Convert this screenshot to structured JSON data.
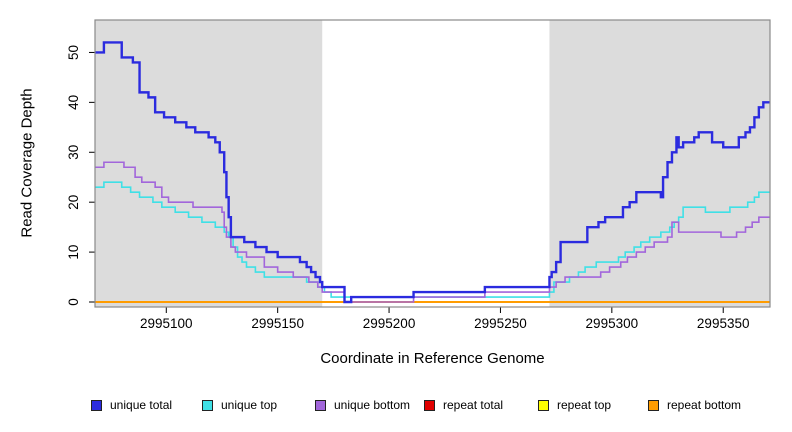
{
  "chart_data": {
    "type": "line",
    "subtype": "step",
    "title": "",
    "xlabel": "Coordinate in Reference Genome",
    "ylabel": "Read Coverage Depth",
    "xlim": [
      2995068,
      2995371
    ],
    "ylim": [
      -1,
      56.5
    ],
    "xticks": [
      2995100,
      2995150,
      2995200,
      2995250,
      2995300,
      2995350
    ],
    "yticks": [
      0,
      10,
      20,
      30,
      40,
      50
    ],
    "grid": "off",
    "legend_position": "bottom",
    "plot_bg": "#ffffff",
    "box_color": "#8a8a8a",
    "shaded_regions": [
      {
        "name": "left-repeat-region",
        "x0": 2995068,
        "x1": 2995170,
        "color": "#dcdcdc"
      },
      {
        "name": "right-repeat-region",
        "x0": 2995272,
        "x1": 2995371,
        "color": "#dcdcdc"
      }
    ],
    "draw_order": [
      "repeat total",
      "repeat top",
      "repeat bottom",
      "unique top",
      "unique bottom",
      "unique total"
    ],
    "series": [
      {
        "name": "unique total",
        "color": "#2b2bdf",
        "line_width": 2.4,
        "points": [
          [
            2995068,
            50
          ],
          [
            2995072,
            52
          ],
          [
            2995080,
            49
          ],
          [
            2995085,
            48
          ],
          [
            2995088,
            42
          ],
          [
            2995092,
            41
          ],
          [
            2995095,
            38
          ],
          [
            2995099,
            37
          ],
          [
            2995104,
            36
          ],
          [
            2995109,
            35
          ],
          [
            2995113,
            34
          ],
          [
            2995119,
            33
          ],
          [
            2995122,
            32
          ],
          [
            2995124,
            30
          ],
          [
            2995126,
            26
          ],
          [
            2995127,
            21
          ],
          [
            2995128,
            17
          ],
          [
            2995129,
            13
          ],
          [
            2995135,
            12
          ],
          [
            2995140,
            11
          ],
          [
            2995145,
            10
          ],
          [
            2995150,
            9
          ],
          [
            2995160,
            8
          ],
          [
            2995163,
            7
          ],
          [
            2995165,
            6
          ],
          [
            2995167,
            5
          ],
          [
            2995169,
            4
          ],
          [
            2995170,
            3
          ],
          [
            2995180,
            0
          ],
          [
            2995183,
            1
          ],
          [
            2995211,
            2
          ],
          [
            2995243,
            3
          ],
          [
            2995272,
            5
          ],
          [
            2995273,
            6
          ],
          [
            2995275,
            8
          ],
          [
            2995277,
            12
          ],
          [
            2995289,
            15
          ],
          [
            2995294,
            16
          ],
          [
            2995297,
            17
          ],
          [
            2995305,
            19
          ],
          [
            2995308,
            20
          ],
          [
            2995311,
            22
          ],
          [
            2995322,
            21
          ],
          [
            2995323,
            25
          ],
          [
            2995325,
            28
          ],
          [
            2995327,
            30
          ],
          [
            2995329,
            33
          ],
          [
            2995330,
            31
          ],
          [
            2995332,
            32
          ],
          [
            2995337,
            33
          ],
          [
            2995339,
            34
          ],
          [
            2995345,
            32
          ],
          [
            2995350,
            31
          ],
          [
            2995357,
            33
          ],
          [
            2995360,
            34
          ],
          [
            2995362,
            35
          ],
          [
            2995364,
            37
          ],
          [
            2995366,
            39
          ],
          [
            2995368,
            40
          ]
        ]
      },
      {
        "name": "unique top",
        "color": "#3fe0e6",
        "line_width": 1.6,
        "points": [
          [
            2995068,
            23
          ],
          [
            2995072,
            24
          ],
          [
            2995080,
            23
          ],
          [
            2995084,
            22
          ],
          [
            2995088,
            21
          ],
          [
            2995094,
            20
          ],
          [
            2995098,
            19
          ],
          [
            2995104,
            18
          ],
          [
            2995110,
            17
          ],
          [
            2995116,
            16
          ],
          [
            2995122,
            15
          ],
          [
            2995126,
            14
          ],
          [
            2995128,
            13
          ],
          [
            2995130,
            11
          ],
          [
            2995132,
            9
          ],
          [
            2995134,
            8
          ],
          [
            2995136,
            7
          ],
          [
            2995140,
            6
          ],
          [
            2995144,
            5
          ],
          [
            2995163,
            4
          ],
          [
            2995168,
            3
          ],
          [
            2995171,
            2
          ],
          [
            2995174,
            1
          ],
          [
            2995272,
            2
          ],
          [
            2995274,
            4
          ],
          [
            2995281,
            5
          ],
          [
            2995285,
            6
          ],
          [
            2995288,
            7
          ],
          [
            2995293,
            8
          ],
          [
            2995303,
            9
          ],
          [
            2995306,
            10
          ],
          [
            2995310,
            11
          ],
          [
            2995313,
            12
          ],
          [
            2995317,
            13
          ],
          [
            2995322,
            14
          ],
          [
            2995326,
            15
          ],
          [
            2995328,
            16
          ],
          [
            2995330,
            17
          ],
          [
            2995332,
            19
          ],
          [
            2995342,
            18
          ],
          [
            2995353,
            19
          ],
          [
            2995361,
            20
          ],
          [
            2995364,
            21
          ],
          [
            2995366,
            22
          ]
        ]
      },
      {
        "name": "unique bottom",
        "color": "#a266db",
        "line_width": 1.6,
        "points": [
          [
            2995068,
            27
          ],
          [
            2995072,
            28
          ],
          [
            2995081,
            27
          ],
          [
            2995086,
            25
          ],
          [
            2995089,
            24
          ],
          [
            2995095,
            23
          ],
          [
            2995098,
            21
          ],
          [
            2995101,
            20
          ],
          [
            2995112,
            19
          ],
          [
            2995125,
            18
          ],
          [
            2995126,
            15
          ],
          [
            2995127,
            13
          ],
          [
            2995129,
            11
          ],
          [
            2995131,
            10
          ],
          [
            2995136,
            9
          ],
          [
            2995144,
            7
          ],
          [
            2995150,
            6
          ],
          [
            2995157,
            5
          ],
          [
            2995164,
            4
          ],
          [
            2995168,
            3
          ],
          [
            2995170,
            2
          ],
          [
            2995180,
            0
          ],
          [
            2995211,
            1
          ],
          [
            2995243,
            2
          ],
          [
            2995272,
            3
          ],
          [
            2995275,
            4
          ],
          [
            2995279,
            5
          ],
          [
            2995295,
            6
          ],
          [
            2995299,
            7
          ],
          [
            2995304,
            8
          ],
          [
            2995307,
            9
          ],
          [
            2995311,
            10
          ],
          [
            2995315,
            11
          ],
          [
            2995319,
            12
          ],
          [
            2995325,
            13
          ],
          [
            2995327,
            16
          ],
          [
            2995330,
            14
          ],
          [
            2995349,
            13
          ],
          [
            2995356,
            14
          ],
          [
            2995360,
            15
          ],
          [
            2995363,
            16
          ],
          [
            2995366,
            17
          ]
        ]
      },
      {
        "name": "repeat total",
        "color": "#e00000",
        "line_width": 1.6,
        "points": [
          [
            2995068,
            0
          ]
        ]
      },
      {
        "name": "repeat top",
        "color": "#ffff00",
        "line_width": 1.6,
        "points": [
          [
            2995068,
            0
          ]
        ]
      },
      {
        "name": "repeat bottom",
        "color": "#ff9c00",
        "line_width": 2.0,
        "points": [
          [
            2995068,
            0
          ]
        ]
      }
    ]
  }
}
